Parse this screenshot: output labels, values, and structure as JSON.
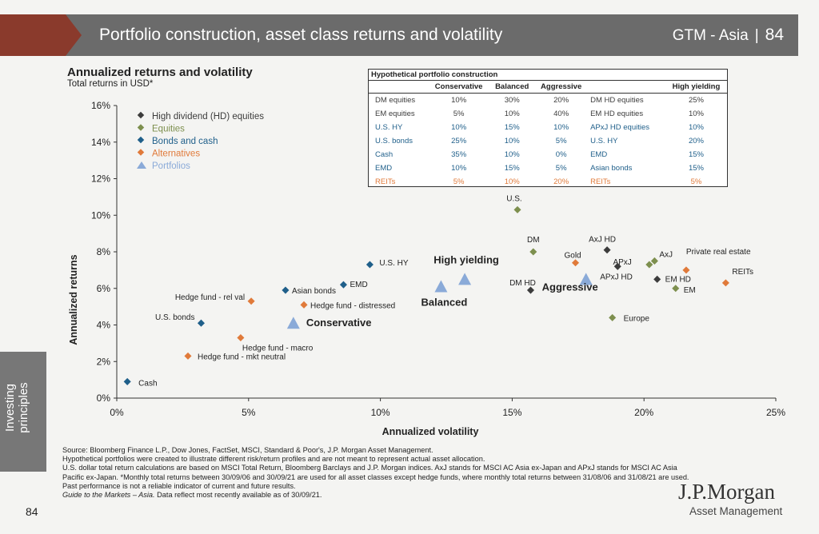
{
  "header": {
    "title": "Portfolio construction, asset class returns and volatility",
    "series": "GTM - Asia",
    "separator": "|",
    "page": "84"
  },
  "chart_heading": {
    "title": "Annualized returns and volatility",
    "subtitle": "Total returns in USD*"
  },
  "colors": {
    "hd": "#3c3c3c",
    "equities": "#7d8f4e",
    "bonds": "#1f5f8a",
    "alternatives": "#e07a3a",
    "portfolios": "#8aaad8"
  },
  "chart_data": {
    "type": "scatter",
    "xlabel": "Annualized volatility",
    "ylabel": "Annualized returns",
    "xlim": [
      0,
      25
    ],
    "ylim": [
      0,
      16
    ],
    "xticks": [
      "0%",
      "5%",
      "10%",
      "15%",
      "20%",
      "25%"
    ],
    "yticks": [
      "0%",
      "2%",
      "4%",
      "6%",
      "8%",
      "10%",
      "12%",
      "14%",
      "16%"
    ],
    "legend": [
      "High dividend (HD) equities",
      "Equities",
      "Bonds and cash",
      "Alternatives",
      "Portfolios"
    ],
    "legend_position": "top-left",
    "points": [
      {
        "label": "Cash",
        "x": 0.4,
        "y": 0.9,
        "group": "bonds"
      },
      {
        "label": "U.S. bonds",
        "x": 3.2,
        "y": 4.1,
        "group": "bonds"
      },
      {
        "label": "Asian bonds",
        "x": 6.4,
        "y": 5.9,
        "group": "bonds"
      },
      {
        "label": "EMD",
        "x": 8.6,
        "y": 6.2,
        "group": "bonds"
      },
      {
        "label": "U.S. HY",
        "x": 9.6,
        "y": 7.3,
        "group": "bonds"
      },
      {
        "label": "Hedge fund - mkt neutral",
        "x": 2.7,
        "y": 2.3,
        "group": "alternatives"
      },
      {
        "label": "Hedge fund - macro",
        "x": 4.7,
        "y": 3.3,
        "group": "alternatives"
      },
      {
        "label": "Hedge fund - rel val",
        "x": 5.1,
        "y": 5.3,
        "group": "alternatives"
      },
      {
        "label": "Hedge fund - distressed",
        "x": 7.1,
        "y": 5.1,
        "group": "alternatives"
      },
      {
        "label": "Gold",
        "x": 17.4,
        "y": 7.4,
        "group": "alternatives"
      },
      {
        "label": "Private real estate",
        "x": 21.6,
        "y": 7.0,
        "group": "alternatives"
      },
      {
        "label": "REITs",
        "x": 23.1,
        "y": 6.3,
        "group": "alternatives"
      },
      {
        "label": "U.S.",
        "x": 15.2,
        "y": 10.3,
        "group": "equities"
      },
      {
        "label": "DM",
        "x": 15.8,
        "y": 8.0,
        "group": "equities"
      },
      {
        "label": "APxJ",
        "x": 20.2,
        "y": 7.3,
        "group": "equities"
      },
      {
        "label": "AxJ",
        "x": 20.4,
        "y": 7.5,
        "group": "equities"
      },
      {
        "label": "EM",
        "x": 21.2,
        "y": 6.0,
        "group": "equities"
      },
      {
        "label": "Europe",
        "x": 18.8,
        "y": 4.4,
        "group": "equities"
      },
      {
        "label": "DM HD",
        "x": 15.7,
        "y": 5.9,
        "group": "hd"
      },
      {
        "label": "AxJ HD",
        "x": 18.6,
        "y": 8.1,
        "group": "hd"
      },
      {
        "label": "APxJ HD",
        "x": 19.0,
        "y": 7.2,
        "group": "hd"
      },
      {
        "label": "EM HD",
        "x": 20.5,
        "y": 6.5,
        "group": "hd"
      },
      {
        "label": "Conservative",
        "x": 6.7,
        "y": 4.1,
        "group": "portfolios"
      },
      {
        "label": "Balanced",
        "x": 12.3,
        "y": 6.1,
        "group": "portfolios"
      },
      {
        "label": "High yielding",
        "x": 13.2,
        "y": 6.5,
        "group": "portfolios"
      },
      {
        "label": "Aggressive",
        "x": 17.8,
        "y": 6.5,
        "group": "portfolios"
      }
    ]
  },
  "portfolio_table": {
    "title": "Hypothetical portfolio construction",
    "headers": [
      "",
      "Conservative",
      "Balanced",
      "Aggressive",
      "",
      "High yielding"
    ],
    "rows": [
      {
        "asset": "DM equities",
        "c": "10%",
        "b": "30%",
        "a": "20%",
        "hy_asset": "DM HD equities",
        "hy": "25%",
        "color": "#3c3c3c"
      },
      {
        "asset": "EM equities",
        "c": "5%",
        "b": "10%",
        "a": "40%",
        "hy_asset": "EM HD equities",
        "hy": "10%",
        "color": "#3c3c3c"
      },
      {
        "asset": "U.S. HY",
        "c": "10%",
        "b": "15%",
        "a": "10%",
        "hy_asset": "APxJ HD equities",
        "hy": "10%",
        "color": "#1f5f8a"
      },
      {
        "asset": "U.S. bonds",
        "c": "25%",
        "b": "10%",
        "a": "5%",
        "hy_asset": "U.S. HY",
        "hy": "20%",
        "color": "#1f5f8a"
      },
      {
        "asset": "Cash",
        "c": "35%",
        "b": "10%",
        "a": "0%",
        "hy_asset": "EMD",
        "hy": "15%",
        "color": "#1f5f8a"
      },
      {
        "asset": "EMD",
        "c": "10%",
        "b": "15%",
        "a": "5%",
        "hy_asset": "Asian bonds",
        "hy": "15%",
        "color": "#1f5f8a"
      },
      {
        "asset": "REITs",
        "c": "5%",
        "b": "10%",
        "a": "20%",
        "hy_asset": "REITs",
        "hy": "5%",
        "color": "#e07a3a"
      }
    ]
  },
  "sidebar": {
    "label_line1": "Investing",
    "label_line2": "principles"
  },
  "page_number": "84",
  "footnotes": [
    "Source: Bloomberg Finance L.P., Dow Jones, FactSet, MSCI, Standard & Poor's, J.P. Morgan Asset Management.",
    "Hypothetical portfolios were created to illustrate different risk/return profiles and are not meant to represent actual asset allocation.",
    "U.S. dollar total return calculations are based on MSCI Total Return, Bloomberg Barclays and J.P. Morgan indices. AxJ stands for MSCI AC Asia ex-Japan and APxJ stands for MSCI AC Asia Pacific ex-Japan. *Monthly total returns between 30/09/06 and 30/09/21 are used for all asset classes except hedge funds, where monthly total returns between 31/08/06 and 31/08/21 are used.",
    "Past performance is not a reliable indicator of current and future results."
  ],
  "footnote_last": {
    "italic": "Guide to the Markets – Asia.",
    "rest": " Data reflect most recently available as of 30/09/21."
  },
  "logo": {
    "name": "J.P.Morgan",
    "sub": "Asset Management"
  }
}
